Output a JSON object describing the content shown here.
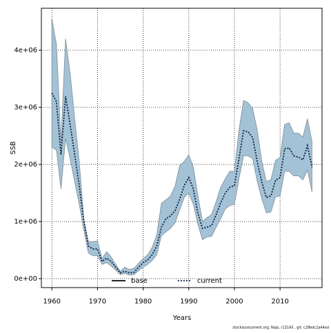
{
  "chart_data": {
    "type": "band_line",
    "ylabel": "SSB",
    "xlabel": "Years",
    "footnote": "stockassessment.org, Naja, r13145 , git: c28bdc2a44ad",
    "x": [
      1960,
      1961,
      1962,
      1963,
      1964,
      1965,
      1966,
      1967,
      1968,
      1969,
      1970,
      1971,
      1972,
      1973,
      1974,
      1975,
      1976,
      1977,
      1978,
      1979,
      1980,
      1981,
      1982,
      1983,
      1984,
      1985,
      1986,
      1987,
      1988,
      1989,
      1990,
      1991,
      1992,
      1993,
      1994,
      1995,
      1996,
      1997,
      1998,
      1999,
      2000,
      2001,
      2002,
      2003,
      2004,
      2005,
      2006,
      2007,
      2008,
      2009,
      2010,
      2011,
      2012,
      2013,
      2014,
      2015,
      2016,
      2017
    ],
    "band": {
      "color": "#a3c2d6",
      "edge": "#7f8c96",
      "upper": [
        4550000,
        4100000,
        2400000,
        4200000,
        3600000,
        2800000,
        2050000,
        1050000,
        650000,
        650000,
        660000,
        350000,
        470000,
        380000,
        250000,
        130000,
        200000,
        160000,
        180000,
        270000,
        350000,
        420000,
        550000,
        770000,
        1320000,
        1380000,
        1450000,
        1620000,
        1980000,
        2050000,
        2170000,
        1950000,
        1450000,
        1000000,
        1070000,
        1120000,
        1350000,
        1600000,
        1750000,
        1880000,
        1880000,
        2600000,
        3120000,
        3080000,
        2980000,
        2600000,
        2050000,
        1700000,
        1730000,
        2070000,
        2120000,
        2700000,
        2730000,
        2550000,
        2550000,
        2480000,
        2800000,
        2400000
      ],
      "lower": [
        2300000,
        2250000,
        1570000,
        2450000,
        2100000,
        1700000,
        1300000,
        850000,
        450000,
        400000,
        400000,
        250000,
        280000,
        220000,
        150000,
        70000,
        90000,
        60000,
        70000,
        140000,
        200000,
        250000,
        320000,
        420000,
        750000,
        820000,
        880000,
        980000,
        1200000,
        1420000,
        1500000,
        1300000,
        950000,
        680000,
        730000,
        740000,
        900000,
        1050000,
        1220000,
        1280000,
        1300000,
        1750000,
        2150000,
        2150000,
        2100000,
        1700000,
        1400000,
        1150000,
        1170000,
        1430000,
        1450000,
        1880000,
        1880000,
        1800000,
        1800000,
        1730000,
        1900000,
        1520000
      ]
    },
    "series": [
      {
        "name": "base",
        "color": "#000000",
        "dash": "solid"
      },
      {
        "name": "current",
        "color": "#0a1a3a",
        "dash": "dotted",
        "values": [
          3250000,
          3100000,
          2170000,
          3190000,
          2700000,
          2170000,
          1630000,
          1000000,
          570000,
          520000,
          520000,
          300000,
          360000,
          300000,
          200000,
          100000,
          130000,
          100000,
          110000,
          200000,
          280000,
          330000,
          420000,
          570000,
          900000,
          1050000,
          1100000,
          1190000,
          1390000,
          1630000,
          1770000,
          1570000,
          1140000,
          880000,
          900000,
          930000,
          1120000,
          1330000,
          1500000,
          1600000,
          1630000,
          2100000,
          2590000,
          2570000,
          2470000,
          2050000,
          1690000,
          1420000,
          1450000,
          1720000,
          1770000,
          2270000,
          2290000,
          2150000,
          2130000,
          2080000,
          2330000,
          1950000
        ]
      }
    ],
    "xlim": [
      1957.7,
      2019.2
    ],
    "xticks": [
      1960,
      1970,
      1980,
      1990,
      2000,
      2010
    ],
    "ylim": [
      -157000,
      4735000
    ],
    "yticks": [
      {
        "value": 0,
        "label": "0e+00"
      },
      {
        "value": 1000000,
        "label": "1e+06"
      },
      {
        "value": 2000000,
        "label": "2e+06"
      },
      {
        "value": 3000000,
        "label": "3e+06"
      },
      {
        "value": 4000000,
        "label": "4e+06"
      }
    ],
    "grid": true,
    "legend": "bottom"
  }
}
